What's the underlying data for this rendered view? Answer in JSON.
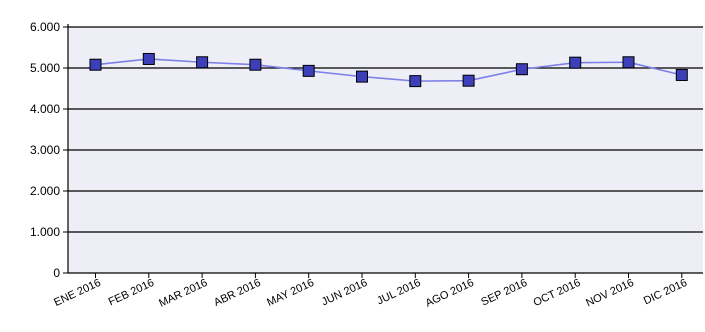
{
  "chart_data": {
    "type": "line",
    "categories": [
      "ENE 2016",
      "FEB 2016",
      "MAR 2016",
      "ABR 2016",
      "MAY 2016",
      "JUN 2016",
      "JUL 2016",
      "AGO 2016",
      "SEP 2016",
      "OCT 2016",
      "NOV 2016",
      "DIC 2016"
    ],
    "series": [
      {
        "values": [
          5080,
          5220,
          5140,
          5080,
          4930,
          4790,
          4680,
          4690,
          4970,
          5130,
          5140,
          4830
        ]
      }
    ],
    "yticks": [
      {
        "value": 0,
        "label": "0"
      },
      {
        "value": 1000,
        "label": "1.000"
      },
      {
        "value": 2000,
        "label": "2.000"
      },
      {
        "value": 3000,
        "label": "3.000"
      },
      {
        "value": 4000,
        "label": "4.000"
      },
      {
        "value": 5000,
        "label": "5.000"
      },
      {
        "value": 6000,
        "label": "6.000"
      }
    ],
    "ylim": [
      0,
      6000
    ],
    "grid": true,
    "legend": "none",
    "colors": {
      "plot_background": "#eeeef6",
      "line": "#7b7fe8",
      "marker_fill": "#3d3fb8",
      "marker_stroke": "#000000",
      "gridline": "#000000"
    }
  }
}
